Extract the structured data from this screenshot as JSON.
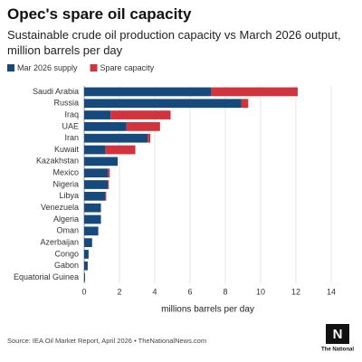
{
  "chart_data": {
    "type": "stacked-barh",
    "title": "Opec's spare oil capacity",
    "subtitle": "Sustainable crude oil production capacity vs March 2026 output, million barrels per day",
    "categories": [
      "Saudi Arabia",
      "Russia",
      "Iraq",
      "UAE",
      "Iran",
      "Kuwait",
      "Kazakhstan",
      "Mexico",
      "Nigeria",
      "Libya",
      "Venezuela",
      "Algeria",
      "Oman",
      "Azerbaijan",
      "Congo",
      "Gabon",
      "Equatorial Guinea"
    ],
    "series": [
      {
        "name": "Mar 2026 supply",
        "color": "#174a7c",
        "values": [
          7.2,
          8.9,
          1.5,
          2.4,
          3.6,
          1.2,
          1.9,
          1.35,
          1.35,
          1.2,
          0.95,
          0.95,
          0.8,
          0.45,
          0.25,
          0.2,
          0.05
        ]
      },
      {
        "name": "Spare capacity",
        "color": "#d1343c",
        "values": [
          4.9,
          0.4,
          3.4,
          1.9,
          0.15,
          1.7,
          0,
          0.1,
          0.05,
          0.05,
          0,
          0,
          0,
          0,
          0,
          0,
          0
        ]
      }
    ],
    "xlim": [
      0,
      14
    ],
    "xticks": [
      0,
      2,
      4,
      6,
      8,
      10,
      12,
      14
    ],
    "grid": true,
    "xlabel": "millions barrels per day",
    "source": "Source: IEA Oil Market Report, April 2026 • TheNationalNews.com",
    "logo": "The National"
  }
}
